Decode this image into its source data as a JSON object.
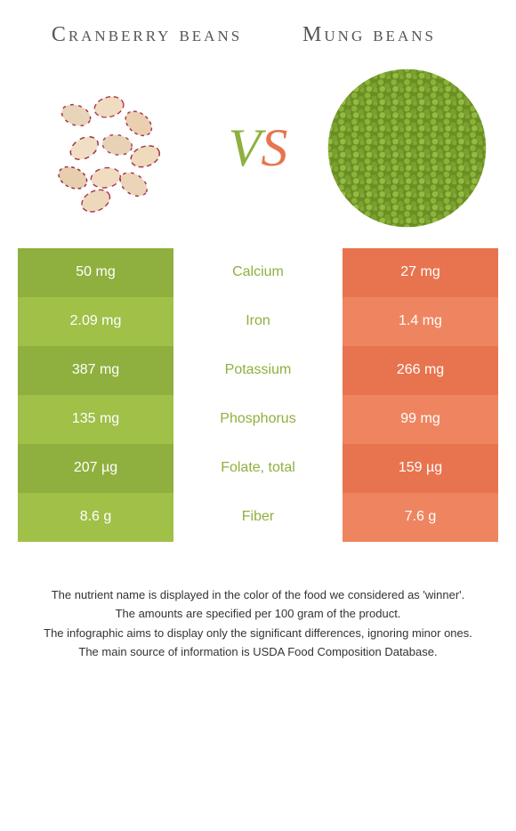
{
  "leftTitle": "Cranberry beans",
  "rightTitle": "Mung beans",
  "vs_v": "V",
  "vs_s": "S",
  "colors": {
    "left_odd": "#8fb03e",
    "left_even": "#a0c048",
    "right_odd": "#e8744f",
    "right_even": "#ef8560",
    "winner_left": "#8fb03e",
    "winner_right": "#e8744f",
    "background": "#ffffff"
  },
  "rows": [
    {
      "left": "50 mg",
      "label": "Calcium",
      "right": "27 mg",
      "winner": "left"
    },
    {
      "left": "2.09 mg",
      "label": "Iron",
      "right": "1.4 mg",
      "winner": "left"
    },
    {
      "left": "387 mg",
      "label": "Potassium",
      "right": "266 mg",
      "winner": "left"
    },
    {
      "left": "135 mg",
      "label": "Phosphorus",
      "right": "99 mg",
      "winner": "left"
    },
    {
      "left": "207 µg",
      "label": "Folate, total",
      "right": "159 µg",
      "winner": "left"
    },
    {
      "left": "8.6 g",
      "label": "Fiber",
      "right": "7.6 g",
      "winner": "left"
    }
  ],
  "footnotes": [
    "The nutrient name is displayed in the color of the food we considered as 'winner'.",
    "The amounts are specified per 100 gram of the product.",
    "The infographic aims to display only the significant differences, ignoring minor ones.",
    "The main source of information is USDA Food Composition Database."
  ]
}
